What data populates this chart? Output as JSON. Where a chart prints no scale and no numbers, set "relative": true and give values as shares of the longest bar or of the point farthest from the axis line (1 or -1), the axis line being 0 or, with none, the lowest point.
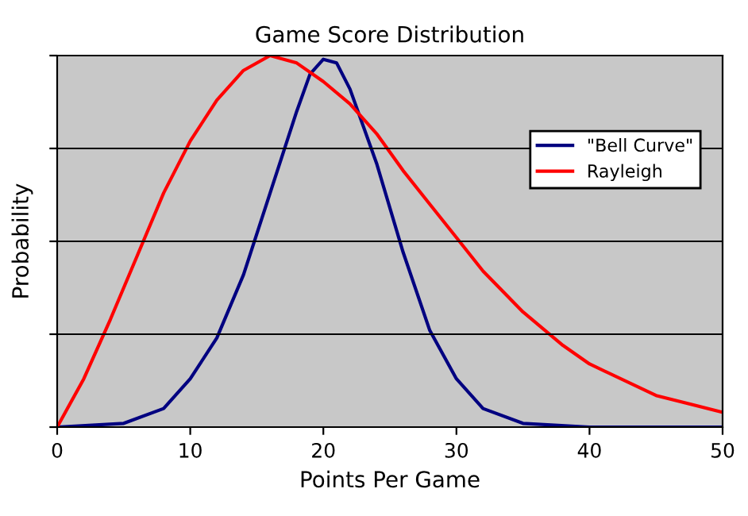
{
  "chart_data": {
    "type": "line",
    "title": "Game Score Distribution",
    "xlabel": "Points Per Game",
    "ylabel": "Probability",
    "relative": true,
    "xlim": [
      0,
      50
    ],
    "xticks": [
      0,
      10,
      20,
      30,
      40,
      50
    ],
    "grid": "y",
    "legend": "right",
    "marker": "none",
    "line_style": "solid",
    "series": [
      {
        "name": "\"Bell Curve\"",
        "color": "#000080",
        "x": [
          0,
          5,
          8,
          10,
          12,
          14,
          16,
          18,
          19,
          20,
          21,
          22,
          24,
          26,
          28,
          30,
          32,
          35,
          40,
          50
        ],
        "values": [
          0,
          0.01,
          0.05,
          0.13,
          0.24,
          0.41,
          0.63,
          0.85,
          0.95,
          0.99,
          0.98,
          0.91,
          0.71,
          0.47,
          0.26,
          0.13,
          0.05,
          0.01,
          0,
          0
        ]
      },
      {
        "name": "Rayleigh",
        "color": "#ff0000",
        "x": [
          0,
          2,
          4,
          6,
          8,
          10,
          12,
          14,
          16,
          18,
          20,
          22,
          24,
          26,
          28,
          30,
          32,
          35,
          38,
          40,
          45,
          50
        ],
        "values": [
          0,
          0.13,
          0.29,
          0.46,
          0.63,
          0.77,
          0.88,
          0.96,
          1,
          0.98,
          0.93,
          0.87,
          0.79,
          0.69,
          0.6,
          0.51,
          0.42,
          0.31,
          0.22,
          0.17,
          0.085,
          0.04
        ]
      }
    ]
  }
}
